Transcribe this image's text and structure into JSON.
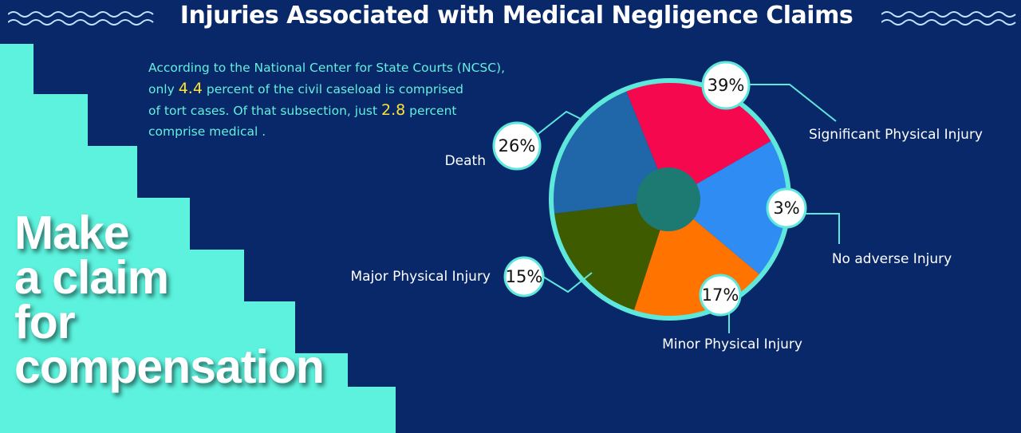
{
  "title": "Injuries Associated with Medical Negligence Claims",
  "intro": {
    "line1": "According to the National Center for State Courts (NCSC),",
    "line2_pre": "only ",
    "line2_hl": "4.4",
    "line2_post": " percent of the civil caseload is comprised",
    "line3_pre": "of tort cases. Of that subsection, just ",
    "line3_hl": "2.8",
    "line3_post": " percent",
    "line4": " comprise medical ."
  },
  "cta": [
    "Make",
    "a claim",
    "for",
    "compensation"
  ],
  "colors": {
    "background": "#08286a",
    "accent": "#5cf2dd",
    "highlight": "#ffe234",
    "pie_border": "#5ee8dc",
    "pie_center": "#1d7a72"
  },
  "chart_data": {
    "type": "pie",
    "title": "Injuries Associated with Medical Negligence Claims",
    "slices": [
      {
        "label": "Significant Physical Injury",
        "percent_label": "39%",
        "value": 39,
        "color": "#f5084e"
      },
      {
        "label": "No adverse Injury",
        "percent_label": "3%",
        "value": 3,
        "color": "#2f8cf2"
      },
      {
        "label": "Minor Physical Injury",
        "percent_label": "17%",
        "value": 17,
        "color": "#ff7300"
      },
      {
        "label": "Major Physical Injury",
        "percent_label": "15%",
        "value": 15,
        "color": "#3f5b00"
      },
      {
        "label": "Death",
        "percent_label": "26%",
        "value": 26,
        "color": "#1f67a8"
      }
    ]
  }
}
